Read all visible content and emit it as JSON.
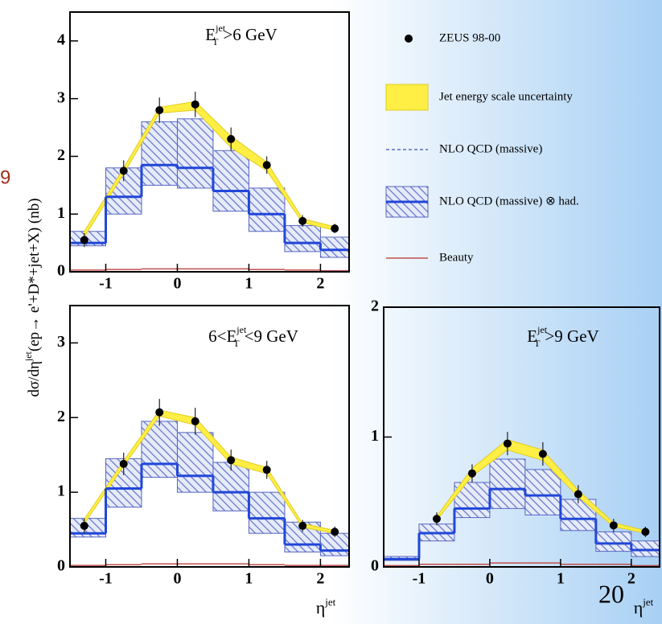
{
  "side_text": "9",
  "slide_number": "20",
  "y_label": {
    "pre": "dσ/dη",
    "sup": "jet",
    "post": "(ep→ e'+D*+jet+X) (nb)"
  },
  "x_label": {
    "base": "η",
    "sup": "jet"
  },
  "legend": [
    {
      "name": "ZEUS 98-00",
      "color": "#000000"
    },
    {
      "name": "Jet energy scale uncertainty",
      "color": "#ffee44"
    },
    {
      "name": "NLO QCD (massive)",
      "color": "#3a4fb0"
    },
    {
      "name": "NLO QCD (massive) ⊗ had.",
      "color": "#2147d8"
    },
    {
      "name": "Beauty",
      "color": "#c0504d"
    }
  ],
  "chart_data": [
    {
      "type": "histogram",
      "title": {
        "base": "E",
        "sup": "jet",
        "sub": "T",
        "rest": ">6 GeV"
      },
      "xlim": [
        -1.5,
        2.4
      ],
      "xticks": [
        -1,
        0,
        1,
        2
      ],
      "ylim": [
        0,
        4.5
      ],
      "yticks": [
        0,
        1,
        2,
        3,
        4
      ],
      "bins": [
        -1.5,
        -1,
        -0.5,
        0,
        0.5,
        1,
        1.5,
        2,
        2.4
      ],
      "points": {
        "x": [
          -1.3,
          -0.75,
          -0.25,
          0.25,
          0.75,
          1.25,
          1.75,
          2.2
        ],
        "values": [
          0.55,
          1.75,
          2.8,
          2.9,
          2.3,
          1.85,
          0.88,
          0.75
        ],
        "errors": [
          0.12,
          0.18,
          0.22,
          0.22,
          0.2,
          0.15,
          0.1,
          0.08
        ]
      },
      "jes_band": {
        "low": [
          0.6,
          1.7,
          2.75,
          2.8,
          2.15,
          1.75,
          0.85,
          0.72
        ],
        "high": [
          0.7,
          1.8,
          2.85,
          2.95,
          2.35,
          1.9,
          0.92,
          0.78
        ]
      },
      "nlo_had": {
        "low": [
          0.45,
          1.0,
          1.5,
          1.45,
          1.05,
          0.7,
          0.35,
          0.25
        ],
        "high": [
          0.7,
          1.8,
          2.6,
          2.65,
          2.1,
          1.45,
          0.8,
          0.6
        ],
        "central": [
          0.5,
          1.3,
          1.85,
          1.8,
          1.4,
          1.0,
          0.5,
          0.38
        ]
      },
      "beauty": [
        0.03,
        0.04,
        0.05,
        0.05,
        0.05,
        0.04,
        0.03,
        0.02
      ]
    },
    {
      "type": "histogram",
      "title": {
        "pre": "6<",
        "base": "E",
        "sup": "jet",
        "sub": "T",
        "rest": "<9 GeV"
      },
      "xlim": [
        -1.5,
        2.4
      ],
      "xticks": [
        -1,
        0,
        1,
        2
      ],
      "ylim": [
        0,
        3.5
      ],
      "yticks": [
        0,
        1,
        2,
        3
      ],
      "bins": [
        -1.5,
        -1,
        -0.5,
        0,
        0.5,
        1,
        1.5,
        2,
        2.4
      ],
      "points": {
        "x": [
          -1.3,
          -0.75,
          -0.25,
          0.25,
          0.75,
          1.25,
          1.75,
          2.2
        ],
        "values": [
          0.55,
          1.38,
          2.07,
          1.95,
          1.43,
          1.3,
          0.55,
          0.47
        ],
        "errors": [
          0.1,
          0.15,
          0.18,
          0.18,
          0.14,
          0.12,
          0.08,
          0.07
        ]
      },
      "jes_band": {
        "low": [
          0.58,
          1.35,
          2.02,
          1.9,
          1.38,
          1.25,
          0.53,
          0.45
        ],
        "high": [
          0.64,
          1.42,
          2.1,
          2.0,
          1.47,
          1.33,
          0.58,
          0.49
        ]
      },
      "nlo_had": {
        "low": [
          0.4,
          0.8,
          1.2,
          1.0,
          0.75,
          0.45,
          0.2,
          0.15
        ],
        "high": [
          0.65,
          1.45,
          1.95,
          1.8,
          1.4,
          1.0,
          0.6,
          0.45
        ],
        "central": [
          0.45,
          1.05,
          1.38,
          1.22,
          1.0,
          0.65,
          0.3,
          0.22
        ]
      },
      "beauty": [
        0.02,
        0.03,
        0.04,
        0.04,
        0.04,
        0.03,
        0.02,
        0.02
      ]
    },
    {
      "type": "histogram",
      "title": {
        "base": "E",
        "sup": "jet",
        "sub": "T",
        "rest": ">9 GeV"
      },
      "xlim": [
        -1.5,
        2.4
      ],
      "xticks": [
        -1,
        0,
        1,
        2
      ],
      "ylim": [
        0,
        2
      ],
      "yticks": [
        0,
        1,
        2
      ],
      "bins": [
        -1.5,
        -1,
        -0.5,
        0,
        0.5,
        1,
        1.5,
        2,
        2.4
      ],
      "points": {
        "x": [
          null,
          -0.75,
          -0.25,
          0.25,
          0.75,
          1.25,
          1.75,
          2.2
        ],
        "values": [
          null,
          0.37,
          0.72,
          0.95,
          0.87,
          0.56,
          0.32,
          0.27
        ],
        "errors": [
          null,
          0.05,
          0.07,
          0.09,
          0.09,
          0.07,
          0.05,
          0.04
        ]
      },
      "jes_band": {
        "low": [
          null,
          0.36,
          0.7,
          0.9,
          0.82,
          0.54,
          0.31,
          0.26
        ],
        "high": [
          null,
          0.39,
          0.76,
          0.98,
          0.9,
          0.59,
          0.34,
          0.28
        ]
      },
      "nlo_had": {
        "low": [
          0.05,
          0.2,
          0.38,
          0.45,
          0.4,
          0.28,
          0.12,
          0.08
        ],
        "high": [
          0.08,
          0.33,
          0.65,
          0.83,
          0.75,
          0.52,
          0.27,
          0.2
        ],
        "central": [
          0.06,
          0.26,
          0.45,
          0.6,
          0.55,
          0.37,
          0.18,
          0.13
        ]
      },
      "beauty": [
        0.01,
        0.02,
        0.02,
        0.03,
        0.03,
        0.02,
        0.02,
        0.01
      ]
    }
  ]
}
